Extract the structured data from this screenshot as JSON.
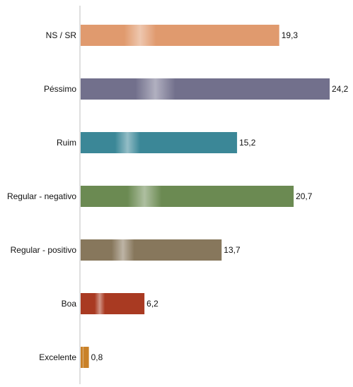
{
  "chart_data": {
    "type": "bar",
    "orientation": "horizontal",
    "categories": [
      "NS / SR",
      "Péssimo",
      "Ruim",
      "Regular - negativo",
      "Regular - positivo",
      "Boa",
      "Excelente"
    ],
    "values": [
      19.3,
      24.2,
      15.2,
      20.7,
      13.7,
      6.2,
      0.8
    ],
    "value_labels": [
      "19,3",
      "24,2",
      "15,2",
      "20,7",
      "13,7",
      "6,2",
      "0,8"
    ],
    "colors": [
      "#e09a6e",
      "#72708c",
      "#3b8797",
      "#6b8a52",
      "#87775c",
      "#a93a22",
      "#c98128"
    ],
    "title": "",
    "xlabel": "",
    "ylabel": "",
    "xlim": [
      0,
      24.2
    ],
    "grid": false,
    "legend": "none"
  }
}
